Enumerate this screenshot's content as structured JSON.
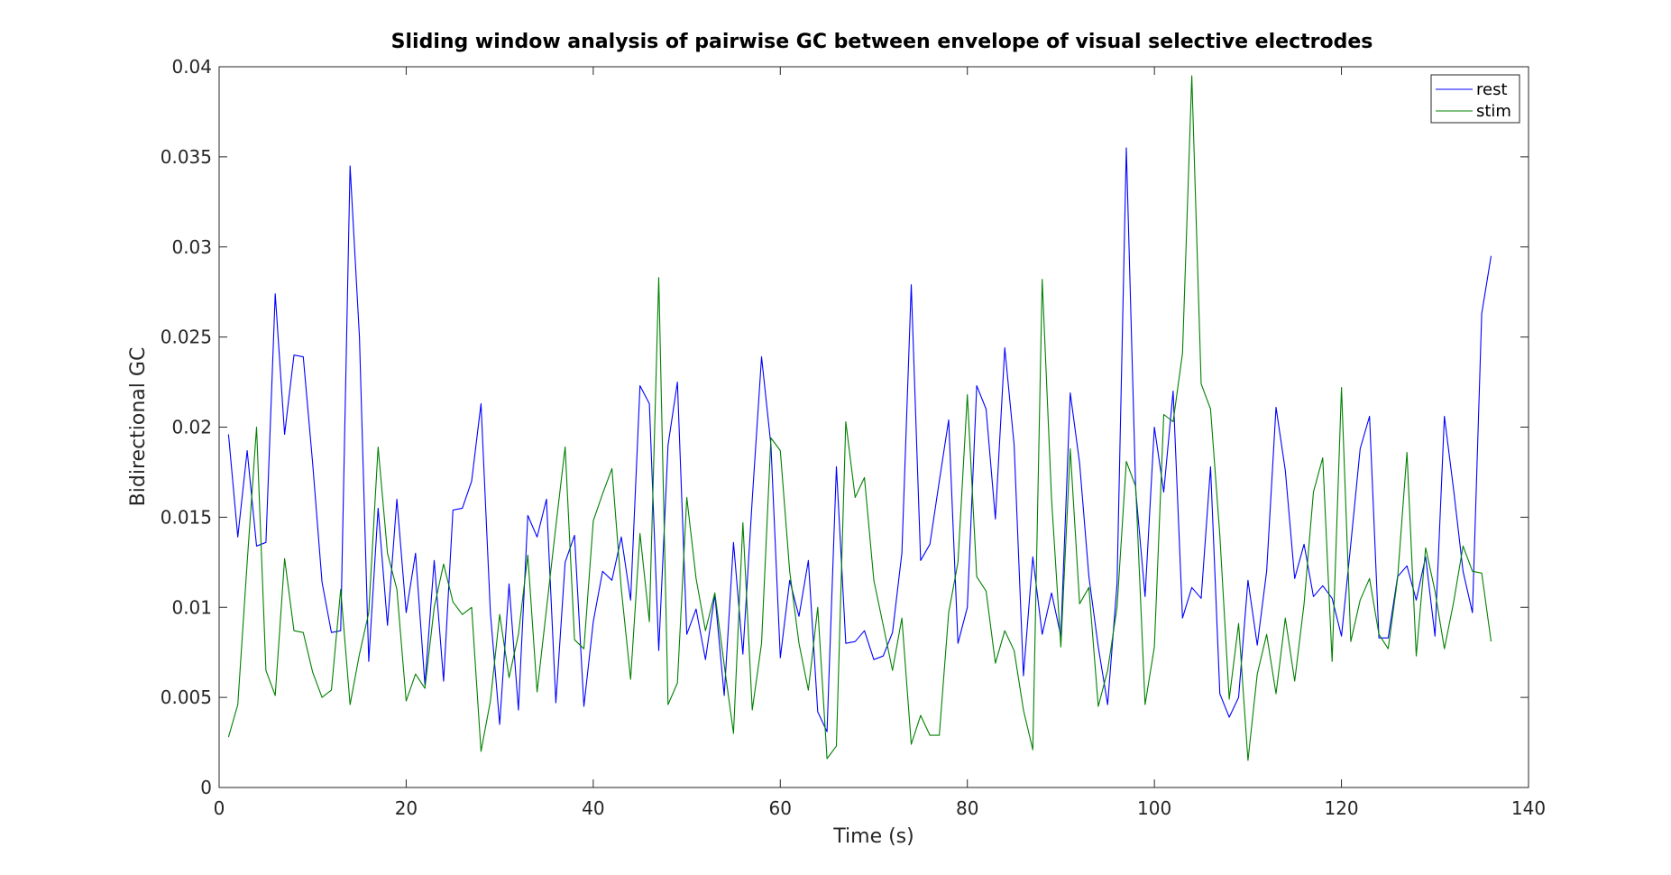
{
  "chart_data": {
    "type": "line",
    "title": "Sliding window analysis of pairwise GC between envelope of visual selective electrodes",
    "xlabel": "Time (s)",
    "ylabel": "Bidirectional GC",
    "xlim": [
      0,
      140
    ],
    "ylim": [
      0,
      0.04
    ],
    "xticks": [
      0,
      20,
      40,
      60,
      80,
      100,
      120,
      140
    ],
    "xtick_labels": [
      "0",
      "20",
      "40",
      "60",
      "80",
      "100",
      "120",
      "140"
    ],
    "yticks": [
      0,
      0.005,
      0.01,
      0.015,
      0.02,
      0.025,
      0.03,
      0.035,
      0.04
    ],
    "ytick_labels": [
      "0",
      "0.005",
      "0.01",
      "0.015",
      "0.02",
      "0.025",
      "0.03",
      "0.035",
      "0.04"
    ],
    "grid": false,
    "legend_position": "top-right",
    "x": [
      1,
      2,
      3,
      4,
      5,
      6,
      7,
      8,
      9,
      10,
      11,
      12,
      13,
      14,
      15,
      16,
      17,
      18,
      19,
      20,
      21,
      22,
      23,
      24,
      25,
      26,
      27,
      28,
      29,
      30,
      31,
      32,
      33,
      34,
      35,
      36,
      37,
      38,
      39,
      40,
      41,
      42,
      43,
      44,
      45,
      46,
      47,
      48,
      49,
      50,
      51,
      52,
      53,
      54,
      55,
      56,
      57,
      58,
      59,
      60,
      61,
      62,
      63,
      64,
      65,
      66,
      67,
      68,
      69,
      70,
      71,
      72,
      73,
      74,
      75,
      76,
      77,
      78,
      79,
      80,
      81,
      82,
      83,
      84,
      85,
      86,
      87,
      88,
      89,
      90,
      91,
      92,
      93,
      94,
      95,
      96,
      97,
      98,
      99,
      100,
      101,
      102,
      103,
      104,
      105,
      106,
      107,
      108,
      109,
      110,
      111,
      112,
      113,
      114,
      115,
      116,
      117,
      118,
      119,
      120,
      121,
      122,
      123,
      124,
      125,
      126,
      127,
      128,
      129,
      130,
      131,
      132,
      133,
      134,
      135,
      136
    ],
    "series": [
      {
        "name": "rest",
        "color": "#0000ff",
        "values": [
          0.0196,
          0.0139,
          0.0187,
          0.0134,
          0.0136,
          0.0274,
          0.0196,
          0.024,
          0.0239,
          0.018,
          0.0114,
          0.0086,
          0.0087,
          0.0345,
          0.025,
          0.007,
          0.0155,
          0.009,
          0.016,
          0.0097,
          0.013,
          0.0057,
          0.0126,
          0.0059,
          0.0154,
          0.0155,
          0.017,
          0.0213,
          0.0097,
          0.0035,
          0.0113,
          0.0043,
          0.0151,
          0.0139,
          0.016,
          0.0047,
          0.0125,
          0.014,
          0.0045,
          0.0092,
          0.012,
          0.0115,
          0.0139,
          0.0104,
          0.0223,
          0.0213,
          0.0076,
          0.019,
          0.0225,
          0.0085,
          0.0099,
          0.0071,
          0.0107,
          0.0051,
          0.0136,
          0.0074,
          0.016,
          0.0239,
          0.019,
          0.0072,
          0.0115,
          0.0095,
          0.0126,
          0.0042,
          0.0031,
          0.0178,
          0.008,
          0.0081,
          0.0087,
          0.0071,
          0.0073,
          0.0086,
          0.013,
          0.0279,
          0.0126,
          0.0135,
          0.017,
          0.0204,
          0.008,
          0.01,
          0.0223,
          0.021,
          0.0149,
          0.0244,
          0.019,
          0.0062,
          0.0128,
          0.0085,
          0.0108,
          0.0084,
          0.0219,
          0.018,
          0.0117,
          0.0078,
          0.0046,
          0.0113,
          0.0355,
          0.0165,
          0.0106,
          0.02,
          0.0164,
          0.022,
          0.0094,
          0.0111,
          0.0105,
          0.0178,
          0.0052,
          0.0039,
          0.005,
          0.0115,
          0.0079,
          0.012,
          0.0211,
          0.0176,
          0.0116,
          0.0135,
          0.0106,
          0.0112,
          0.0105,
          0.0084,
          0.0135,
          0.0188,
          0.0206,
          0.0083,
          0.0083,
          0.0117,
          0.0123,
          0.0104,
          0.0128,
          0.0084,
          0.0206,
          0.0165,
          0.012,
          0.0097,
          0.0263,
          0.0295
        ]
      },
      {
        "name": "stim",
        "color": "#008000",
        "values": [
          0.0028,
          0.0046,
          0.0125,
          0.02,
          0.0065,
          0.0051,
          0.0127,
          0.0087,
          0.0086,
          0.0064,
          0.005,
          0.0054,
          0.011,
          0.0046,
          0.0074,
          0.0097,
          0.0189,
          0.013,
          0.011,
          0.0048,
          0.0063,
          0.0055,
          0.01,
          0.0124,
          0.0103,
          0.0096,
          0.01,
          0.002,
          0.0048,
          0.0096,
          0.0061,
          0.0085,
          0.0129,
          0.0053,
          0.0099,
          0.0145,
          0.0189,
          0.0082,
          0.0077,
          0.0148,
          0.0163,
          0.0177,
          0.011,
          0.006,
          0.0141,
          0.0092,
          0.0283,
          0.0046,
          0.0058,
          0.0161,
          0.0116,
          0.0087,
          0.0108,
          0.0068,
          0.003,
          0.0147,
          0.0043,
          0.008,
          0.0194,
          0.0187,
          0.012,
          0.008,
          0.0054,
          0.01,
          0.0016,
          0.0023,
          0.0203,
          0.0161,
          0.0172,
          0.0115,
          0.009,
          0.0065,
          0.0094,
          0.0024,
          0.004,
          0.0029,
          0.0029,
          0.0097,
          0.0125,
          0.0218,
          0.0117,
          0.0109,
          0.0069,
          0.0087,
          0.0076,
          0.0043,
          0.0021,
          0.0282,
          0.016,
          0.0078,
          0.0188,
          0.0102,
          0.0111,
          0.0045,
          0.0065,
          0.01,
          0.0181,
          0.0167,
          0.0046,
          0.0078,
          0.0207,
          0.0203,
          0.0241,
          0.0395,
          0.0224,
          0.021,
          0.014,
          0.0049,
          0.0091,
          0.0015,
          0.0063,
          0.0085,
          0.0052,
          0.0094,
          0.0059,
          0.0102,
          0.0164,
          0.0183,
          0.007,
          0.0222,
          0.0081,
          0.0104,
          0.0116,
          0.0085,
          0.0077,
          0.0116,
          0.0186,
          0.0073,
          0.0133,
          0.0109,
          0.0077,
          0.0103,
          0.0134,
          0.012,
          0.0119,
          0.0081
        ]
      }
    ]
  }
}
